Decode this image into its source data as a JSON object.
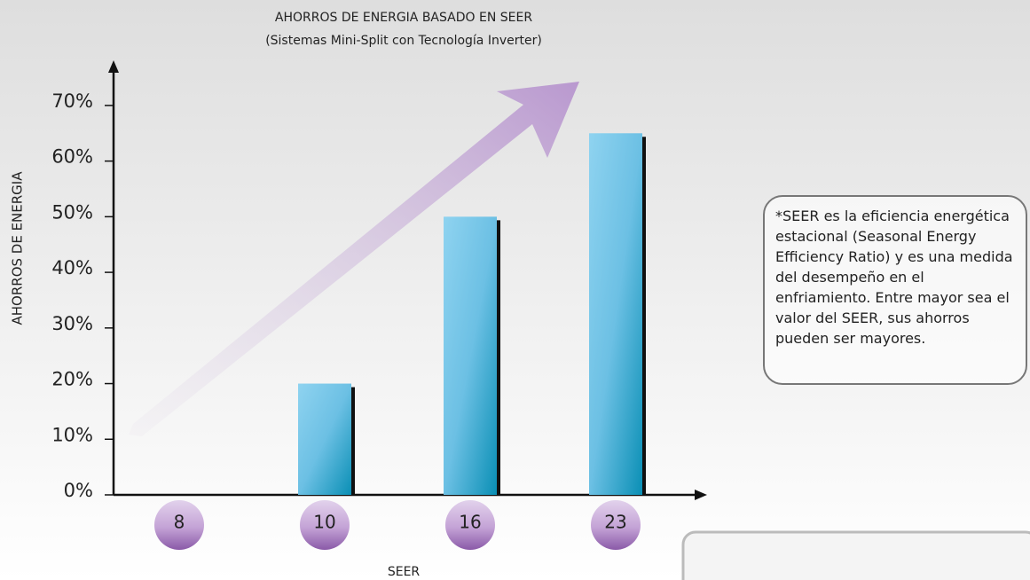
{
  "chart_data": {
    "type": "bar",
    "title": "AHORROS DE ENERGIA BASADO EN SEER",
    "subtitle": "(Sistemas Mini-Split con Tecnología Inverter)",
    "y_label": "AHORROS DE ENERGIA",
    "x_label": "SEER",
    "categories": [
      "8",
      "10",
      "16",
      "23"
    ],
    "values": [
      0,
      20,
      50,
      65
    ],
    "ylim": [
      0,
      77
    ],
    "yticks": [
      {
        "value": 0,
        "label": "0%"
      },
      {
        "value": 10,
        "label": "10%"
      },
      {
        "value": 20,
        "label": "20%"
      },
      {
        "value": 30,
        "label": "30%"
      },
      {
        "value": 40,
        "label": "40%"
      },
      {
        "value": 50,
        "label": "50%"
      },
      {
        "value": 60,
        "label": "60%"
      },
      {
        "value": 70,
        "label": "70%"
      }
    ],
    "annotation": "*SEER es la eficiencia energética estacional (Seasonal Energy Efficiency Ratio) y es una medida del desempeño en el enfriamiento. Entre mayor sea el valor del SEER, sus ahorros pueden ser mayores."
  }
}
